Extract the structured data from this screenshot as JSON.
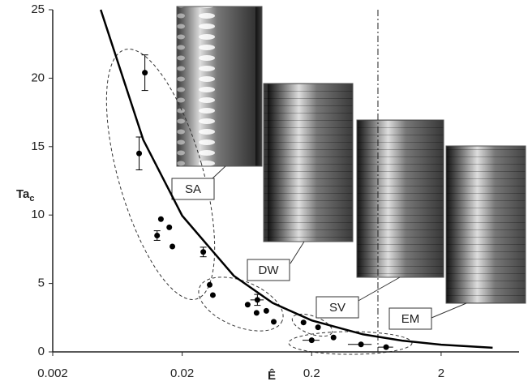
{
  "chart_data": {
    "type": "scatter",
    "x_label": "Ê",
    "y_label": "Ta",
    "y_label_subscript": "c",
    "xlog": true,
    "xlim": [
      0.002,
      8
    ],
    "xticks": [
      0.002,
      0.02,
      0.2,
      2
    ],
    "ylim": [
      0,
      25
    ],
    "yticks": [
      0,
      5,
      10,
      15,
      20,
      25
    ],
    "series": [
      {
        "kind": "points",
        "color": "#000000",
        "x": [
          0.0103,
          0.0093,
          0.0137,
          0.0128,
          0.0159,
          0.0168,
          0.0291,
          0.0326,
          0.0345,
          0.0641,
          0.0762,
          0.0751,
          0.0893,
          0.1019,
          0.173,
          0.224,
          0.295,
          0.2,
          0.481,
          0.752
        ],
        "values": [
          20.4,
          14.5,
          9.7,
          8.5,
          9.1,
          7.7,
          7.3,
          4.9,
          4.15,
          3.45,
          3.8,
          2.85,
          3.0,
          2.2,
          2.15,
          1.8,
          1.05,
          0.85,
          0.55,
          0.35
        ],
        "y_errors": [
          1.3,
          1.2,
          null,
          0.35,
          null,
          null,
          0.35,
          null,
          null,
          null,
          0.4,
          null,
          null,
          null,
          null,
          null,
          null,
          null,
          null,
          null
        ],
        "x_errors": [
          null,
          null,
          null,
          null,
          null,
          null,
          null,
          null,
          null,
          null,
          0.009,
          null,
          null,
          null,
          null,
          null,
          null,
          0.03,
          0.1,
          0.1
        ]
      },
      {
        "kind": "line",
        "color": "#000000",
        "x": [
          0.0047,
          0.01,
          0.02,
          0.05,
          0.1,
          0.2,
          0.5,
          1,
          2,
          5
        ],
        "values": [
          25,
          15.5,
          9.95,
          5.56,
          3.57,
          2.3,
          1.28,
          0.825,
          0.53,
          0.3
        ]
      }
    ],
    "reference_x": 0.65,
    "annotations": [
      "SA",
      "DW",
      "SV",
      "EM"
    ]
  }
}
